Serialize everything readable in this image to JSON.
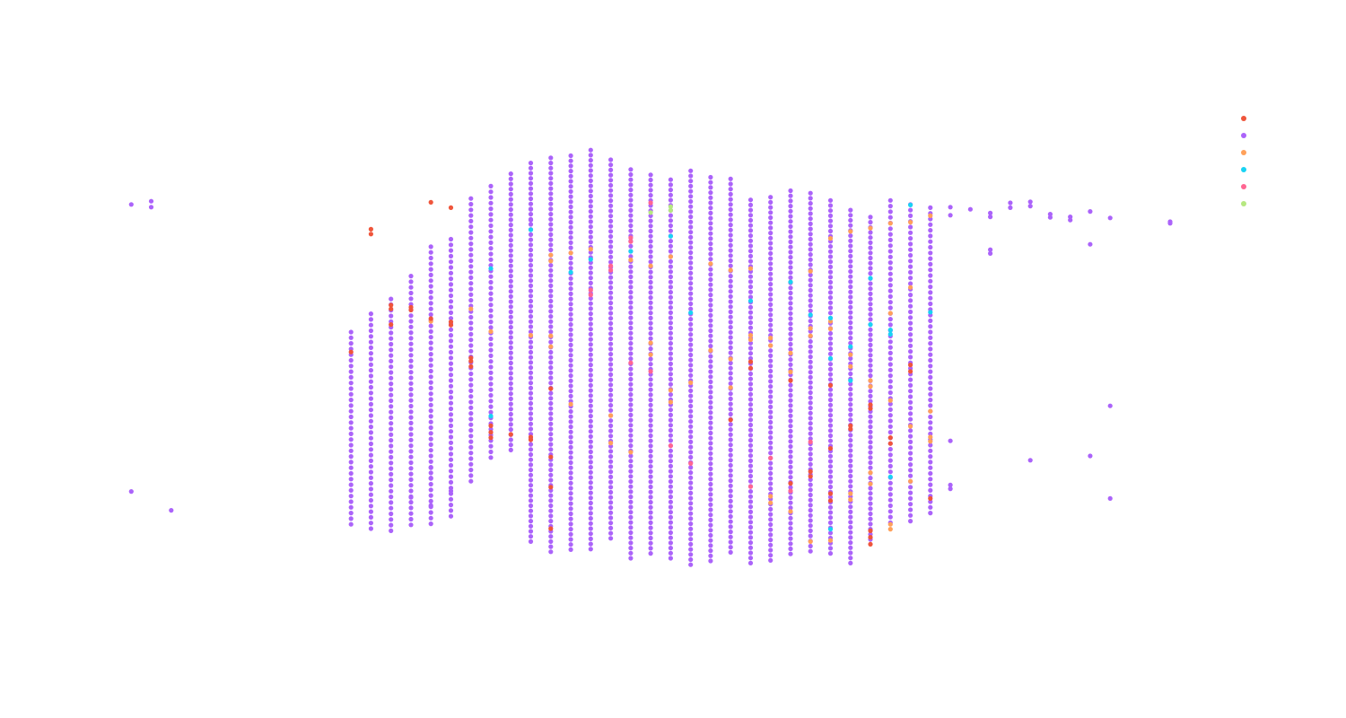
{
  "chart_data": {
    "type": "scatter",
    "title": "",
    "xlabel": "",
    "ylabel": "",
    "grid": false,
    "legend": {
      "placement": "top-right",
      "show_labels": false
    },
    "xlim": [
      0,
      53
    ],
    "ylim": [
      0,
      100
    ],
    "colors": {
      "red": "#ef553b",
      "purple": "#ab63fa",
      "orange": "#ffa15a",
      "cyan": "#19d3f3",
      "pink": "#ff6692",
      "green": "#b6e880"
    },
    "series": [
      {
        "color_key": "red",
        "points": [
          [
            13,
            74.1
          ],
          [
            13,
            73.2
          ],
          [
            12,
            51.3
          ],
          [
            14,
            60
          ],
          [
            14,
            59.3
          ],
          [
            15,
            59.6
          ],
          [
            15,
            59.1
          ],
          [
            16,
            57.5
          ],
          [
            17,
            56.3
          ],
          [
            17,
            56.9
          ],
          [
            18,
            50.2
          ],
          [
            18,
            49.6
          ],
          [
            18,
            48.6
          ],
          [
            19,
            36.4
          ],
          [
            19,
            37.6
          ],
          [
            19,
            35.4
          ],
          [
            20,
            36
          ],
          [
            21,
            35
          ],
          [
            21,
            35.5
          ],
          [
            22,
            26.2
          ],
          [
            22,
            31.8
          ],
          [
            22,
            44.5
          ],
          [
            22,
            18.5
          ],
          [
            31,
            38.7
          ],
          [
            32,
            48.3
          ],
          [
            32,
            49.5
          ],
          [
            34,
            26.9
          ],
          [
            34,
            46
          ],
          [
            35,
            28.2
          ],
          [
            35,
            29.1
          ],
          [
            36,
            33.4
          ],
          [
            36,
            23.7
          ],
          [
            36,
            25
          ],
          [
            36,
            45.1
          ],
          [
            37,
            37
          ],
          [
            37,
            37.6
          ],
          [
            38,
            15.6
          ],
          [
            38,
            16.9
          ],
          [
            38,
            18.1
          ],
          [
            38,
            40.8
          ],
          [
            38,
            41.5
          ],
          [
            39,
            34.3
          ],
          [
            39,
            35.4
          ],
          [
            40,
            47.7
          ],
          [
            40,
            48.9
          ],
          [
            41,
            24.1
          ],
          [
            14,
            56.4
          ],
          [
            17,
            78.1
          ],
          [
            16,
            79.1
          ]
        ]
      },
      {
        "color_key": "orange",
        "points": [
          [
            16,
            57
          ],
          [
            18,
            59.3
          ],
          [
            19,
            55.1
          ],
          [
            21,
            54.4
          ],
          [
            22,
            52.3
          ],
          [
            22,
            54.3
          ],
          [
            23,
            41.6
          ],
          [
            25,
            39.5
          ],
          [
            25,
            34.4
          ],
          [
            26,
            32.7
          ],
          [
            27,
            50.8
          ],
          [
            27,
            53
          ],
          [
            28,
            42
          ],
          [
            28,
            44.2
          ],
          [
            29,
            45.6
          ],
          [
            30,
            51.6
          ],
          [
            31,
            44.7
          ],
          [
            31,
            50
          ],
          [
            32,
            53.6
          ],
          [
            32,
            54.4
          ],
          [
            33,
            52.5
          ],
          [
            33,
            53.9
          ],
          [
            34,
            47.6
          ],
          [
            34,
            51.1
          ],
          [
            35,
            54.3
          ],
          [
            35,
            55.7
          ],
          [
            36,
            55.6
          ],
          [
            36,
            57
          ],
          [
            37,
            48.6
          ],
          [
            37,
            50.8
          ],
          [
            38,
            44.9
          ],
          [
            38,
            46
          ],
          [
            39,
            42.3
          ],
          [
            39,
            58.5
          ],
          [
            40,
            63.3
          ],
          [
            40,
            37.5
          ],
          [
            41,
            34.7
          ],
          [
            41,
            35.5
          ],
          [
            33,
            23.3
          ],
          [
            33,
            24.5
          ],
          [
            34,
            21.7
          ],
          [
            35,
            16.1
          ],
          [
            36,
            16.3
          ],
          [
            37,
            23.9
          ],
          [
            37,
            25
          ],
          [
            38,
            26.8
          ],
          [
            38,
            28.9
          ],
          [
            39,
            19.3
          ],
          [
            39,
            18.4
          ],
          [
            40,
            27.3
          ],
          [
            41,
            40.3
          ],
          [
            22,
            68.2
          ],
          [
            22,
            69.3
          ],
          [
            23,
            69.7
          ],
          [
            24,
            70.4
          ],
          [
            26,
            68.4
          ],
          [
            27,
            67.3
          ],
          [
            28,
            69
          ],
          [
            30,
            67.7
          ],
          [
            31,
            66.5
          ],
          [
            32,
            66.8
          ],
          [
            34,
            64.3
          ],
          [
            35,
            66.3
          ],
          [
            36,
            72.4
          ],
          [
            37,
            73.7
          ],
          [
            38,
            74.3
          ],
          [
            39,
            75.2
          ],
          [
            40,
            75.4
          ],
          [
            41,
            76.6
          ]
        ]
      },
      {
        "color_key": "cyan",
        "points": [
          [
            19,
            66.8
          ],
          [
            19,
            39.4
          ],
          [
            21,
            74
          ],
          [
            23,
            66.1
          ],
          [
            24,
            68.5
          ],
          [
            26,
            70
          ],
          [
            28,
            72.8
          ],
          [
            29,
            58.6
          ],
          [
            32,
            60.8
          ],
          [
            34,
            64.3
          ],
          [
            35,
            58.2
          ],
          [
            36,
            57.6
          ],
          [
            36,
            50.1
          ],
          [
            37,
            52.3
          ],
          [
            37,
            46
          ],
          [
            38,
            56.4
          ],
          [
            38,
            65
          ],
          [
            39,
            54.6
          ],
          [
            39,
            55.4
          ],
          [
            40,
            78.6
          ],
          [
            36,
            18.4
          ],
          [
            39,
            28.1
          ],
          [
            41,
            58.7
          ]
        ]
      },
      {
        "color_key": "pink",
        "points": [
          [
            24,
            61.9
          ],
          [
            24,
            62.8
          ],
          [
            25,
            66.5
          ],
          [
            25,
            67.3
          ],
          [
            26,
            71.8
          ],
          [
            26,
            72.5
          ],
          [
            27,
            79
          ],
          [
            26,
            49.3
          ],
          [
            27,
            47.7
          ],
          [
            28,
            33.9
          ],
          [
            29,
            30.6
          ],
          [
            32,
            26.3
          ],
          [
            33,
            31.6
          ],
          [
            34,
            25.5
          ],
          [
            35,
            34.6
          ]
        ]
      },
      {
        "color_key": "green",
        "points": [
          [
            27,
            77.2
          ],
          [
            28,
            77.6
          ],
          [
            28,
            78.3
          ]
        ]
      },
      {
        "color_key": "purple",
        "points": [
          [
            1,
            78.7
          ],
          [
            2,
            79.3
          ],
          [
            2,
            78.2
          ],
          [
            1,
            25.4
          ],
          [
            3,
            21.9
          ],
          [
            15,
            24.3
          ],
          [
            16,
            29.8
          ],
          [
            16,
            27.9
          ],
          [
            16,
            22.8
          ],
          [
            17,
            25.5
          ],
          [
            42,
            76.7
          ],
          [
            43,
            77.8
          ],
          [
            44,
            77.1
          ],
          [
            44,
            76.4
          ],
          [
            45,
            78.1
          ],
          [
            45,
            79
          ],
          [
            46,
            78.4
          ],
          [
            46,
            79.2
          ],
          [
            47,
            76.3
          ],
          [
            47,
            76.9
          ],
          [
            48,
            75.8
          ],
          [
            48,
            76.4
          ],
          [
            49,
            77.4
          ],
          [
            50,
            76.2
          ],
          [
            53,
            75.5
          ],
          [
            53,
            75.2
          ],
          [
            49,
            71.3
          ],
          [
            50,
            41.3
          ],
          [
            50,
            24.1
          ],
          [
            49,
            32
          ],
          [
            46,
            31.2
          ],
          [
            44,
            69.6
          ],
          [
            44,
            70.3
          ],
          [
            42,
            78.2
          ],
          [
            42,
            34.8
          ],
          [
            42,
            25.9
          ],
          [
            42,
            26.6
          ],
          [
            21,
            77.8
          ],
          [
            21,
            75.8
          ]
        ]
      }
    ],
    "purple_columns": [
      {
        "x": 12,
        "y": [
          19.3,
          55.7
        ],
        "step": 1.05
      },
      {
        "x": 13,
        "y": [
          18.5,
          58.8
        ],
        "step": 1.05
      },
      {
        "x": 14,
        "y": [
          18.1,
          61.2
        ],
        "step": 1.05
      },
      {
        "x": 15,
        "y": [
          19.2,
          66.2
        ],
        "step": 1.05
      },
      {
        "x": 16,
        "y": [
          19.4,
          71.2
        ],
        "step": 1.05
      },
      {
        "x": 17,
        "y": [
          20.8,
          72.4
        ],
        "step": 1.05
      },
      {
        "x": 18,
        "y": [
          27.3,
          80.1
        ],
        "step": 1.05
      },
      {
        "x": 19,
        "y": [
          31.7,
          82.7
        ],
        "step": 1.05
      },
      {
        "x": 20,
        "y": [
          33.1,
          84.7
        ],
        "step": 0.95
      },
      {
        "x": 21,
        "y": [
          16.1,
          86.9
        ],
        "step": 0.95
      },
      {
        "x": 22,
        "y": [
          14.2,
          87.4
        ],
        "step": 0.95
      },
      {
        "x": 23,
        "y": [
          14.6,
          88.6
        ],
        "step": 0.95
      },
      {
        "x": 24,
        "y": [
          14.7,
          89.4
        ],
        "step": 0.95
      },
      {
        "x": 25,
        "y": [
          16.7,
          87.9
        ],
        "step": 0.95
      },
      {
        "x": 26,
        "y": [
          13,
          85.8
        ],
        "step": 0.95
      },
      {
        "x": 27,
        "y": [
          13.9,
          84.7
        ],
        "step": 0.95
      },
      {
        "x": 28,
        "y": [
          13,
          84.2
        ],
        "step": 0.95
      },
      {
        "x": 29,
        "y": [
          11.8,
          85.4
        ],
        "step": 0.95
      },
      {
        "x": 30,
        "y": [
          12.5,
          84.4
        ],
        "step": 0.95
      },
      {
        "x": 31,
        "y": [
          14.1,
          83.5
        ],
        "step": 0.95
      },
      {
        "x": 32,
        "y": [
          12.1,
          80.2
        ],
        "step": 0.95
      },
      {
        "x": 33,
        "y": [
          12.6,
          80.8
        ],
        "step": 0.95
      },
      {
        "x": 34,
        "y": [
          13.8,
          82.1
        ],
        "step": 0.95
      },
      {
        "x": 35,
        "y": [
          14.3,
          81.2
        ],
        "step": 0.95
      },
      {
        "x": 36,
        "y": [
          13.9,
          79.7
        ],
        "step": 0.95
      },
      {
        "x": 37,
        "y": [
          12.1,
          77.9
        ],
        "step": 0.95
      },
      {
        "x": 38,
        "y": [
          16.5,
          76.6
        ],
        "step": 0.95
      },
      {
        "x": 39,
        "y": [
          19.6,
          79.9
        ],
        "step": 1.05
      },
      {
        "x": 40,
        "y": [
          19.9,
          79.1
        ],
        "step": 1.05
      },
      {
        "x": 41,
        "y": [
          21.4,
          78.2
        ],
        "step": 1.05
      }
    ]
  }
}
